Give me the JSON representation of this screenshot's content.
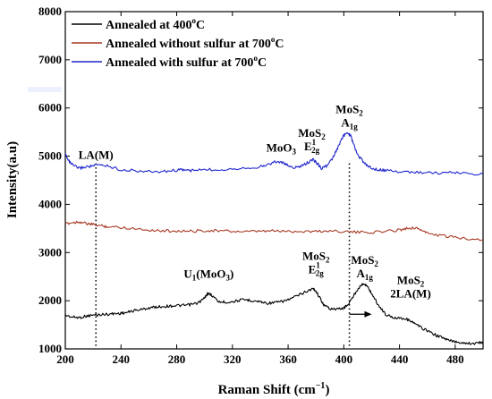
{
  "chart_data": {
    "type": "line",
    "xlabel": "Raman Shift (cm",
    "xlabel_sup": "−1",
    "xlabel_close": ")",
    "ylabel": "Intensity(a.u)",
    "xlim": [
      200,
      500
    ],
    "ylim": [
      1000,
      8000
    ],
    "x_ticks": [
      200,
      240,
      280,
      320,
      360,
      400,
      440,
      480
    ],
    "y_ticks": [
      1000,
      2000,
      3000,
      4000,
      5000,
      6000,
      7000,
      8000
    ],
    "grid": false,
    "legend_position": "top-left",
    "series": [
      {
        "name": "Annealed at 400",
        "name_sup": "o",
        "name_tail": "C",
        "color": "#000000",
        "x": [
          200,
          205,
          210,
          215,
          220,
          225,
          230,
          235,
          240,
          245,
          250,
          255,
          260,
          265,
          270,
          275,
          280,
          285,
          290,
          295,
          300,
          302,
          305,
          310,
          315,
          320,
          325,
          330,
          335,
          340,
          345,
          350,
          355,
          360,
          365,
          370,
          375,
          378,
          380,
          383,
          386,
          390,
          395,
          400,
          403,
          406,
          409,
          412,
          415,
          418,
          421,
          425,
          430,
          435,
          440,
          445,
          448,
          451,
          455,
          460,
          465,
          470,
          475,
          480,
          485,
          490,
          495,
          500
        ],
        "y": [
          1700,
          1660,
          1650,
          1680,
          1700,
          1710,
          1720,
          1730,
          1740,
          1760,
          1800,
          1820,
          1850,
          1870,
          1880,
          1890,
          1900,
          1900,
          1920,
          1950,
          2050,
          2150,
          2120,
          1980,
          1970,
          1980,
          2010,
          2020,
          2000,
          1980,
          1950,
          1960,
          1980,
          2020,
          2080,
          2150,
          2220,
          2250,
          2200,
          2050,
          1900,
          1840,
          1820,
          1850,
          1920,
          2050,
          2200,
          2320,
          2350,
          2250,
          2100,
          1900,
          1720,
          1650,
          1650,
          1620,
          1580,
          1520,
          1450,
          1380,
          1300,
          1240,
          1180,
          1150,
          1130,
          1120,
          1110,
          1150
        ]
      },
      {
        "name": "Annealed without sulfur at 700",
        "name_sup": "o",
        "name_tail": "C",
        "color": "#a83a24",
        "x": [
          200,
          205,
          210,
          215,
          220,
          225,
          230,
          240,
          250,
          260,
          270,
          280,
          290,
          300,
          310,
          320,
          330,
          340,
          350,
          360,
          370,
          380,
          390,
          400,
          410,
          420,
          430,
          440,
          445,
          450,
          455,
          460,
          470,
          480,
          490,
          500
        ],
        "y": [
          3600,
          3620,
          3640,
          3600,
          3580,
          3560,
          3540,
          3520,
          3500,
          3470,
          3450,
          3450,
          3440,
          3460,
          3450,
          3440,
          3430,
          3440,
          3450,
          3440,
          3440,
          3440,
          3450,
          3440,
          3420,
          3420,
          3440,
          3470,
          3500,
          3520,
          3480,
          3400,
          3350,
          3310,
          3290,
          3270
        ]
      },
      {
        "name": "Annealed with sulfur at 700",
        "name_sup": "o",
        "name_tail": "C",
        "color": "#1f26cc",
        "x": [
          200,
          203,
          206,
          210,
          215,
          220,
          225,
          230,
          240,
          250,
          260,
          270,
          280,
          285,
          290,
          300,
          310,
          320,
          330,
          340,
          345,
          350,
          355,
          360,
          365,
          370,
          375,
          378,
          381,
          384,
          388,
          392,
          396,
          400,
          403,
          405,
          407,
          410,
          415,
          420,
          425,
          430,
          440,
          450,
          460,
          470,
          480,
          490,
          500
        ],
        "y": [
          5050,
          4880,
          4800,
          4750,
          4780,
          4800,
          4820,
          4800,
          4720,
          4700,
          4680,
          4680,
          4710,
          4720,
          4700,
          4720,
          4720,
          4740,
          4760,
          4780,
          4820,
          4880,
          4880,
          4800,
          4760,
          4800,
          4880,
          4930,
          4850,
          4750,
          4800,
          4950,
          5200,
          5430,
          5480,
          5420,
          5250,
          5020,
          4850,
          4750,
          4720,
          4700,
          4680,
          4670,
          4660,
          4650,
          4660,
          4640,
          4630
        ]
      }
    ],
    "annotations": [
      {
        "text": "LA(M)",
        "sub": "",
        "line2": "",
        "line2_sub": "",
        "x": 222,
        "y": 4950
      },
      {
        "text": "MoO",
        "sub": "3",
        "line2": "",
        "line2_sub": "",
        "x": 355,
        "y": 5090
      },
      {
        "text": "MoS",
        "sub": "2",
        "line2": "E",
        "line2_sub": "2g",
        "line2_sup": "1",
        "x": 377,
        "y": 5400
      },
      {
        "text": "MoS",
        "sub": "2",
        "line2": "A",
        "line2_sub": "1g",
        "line2_sup": "",
        "x": 404,
        "y": 5890
      },
      {
        "text": "U",
        "sub": "1",
        "line2": "(MoO",
        "line2_sub": "3",
        "line2_tail": ")",
        "x": 303,
        "y": 2480,
        "inline": true
      },
      {
        "text": "MoS",
        "sub": "2",
        "line2": "E",
        "line2_sub": "2g",
        "line2_sup": "1",
        "x": 380,
        "y": 2850
      },
      {
        "text": "MoS",
        "sub": "2",
        "line2": "A",
        "line2_sub": "1g",
        "line2_sup": "",
        "x": 415,
        "y": 2760
      },
      {
        "text": "MoS",
        "sub": "2",
        "line2": "2LA(M)",
        "line2_sub": "",
        "line2_sup": "",
        "x": 448,
        "y": 2350,
        "small2": true
      }
    ],
    "dotted_lines": [
      222,
      404
    ],
    "arrow": {
      "x1": 404,
      "x2": 420,
      "y": 1720
    }
  }
}
